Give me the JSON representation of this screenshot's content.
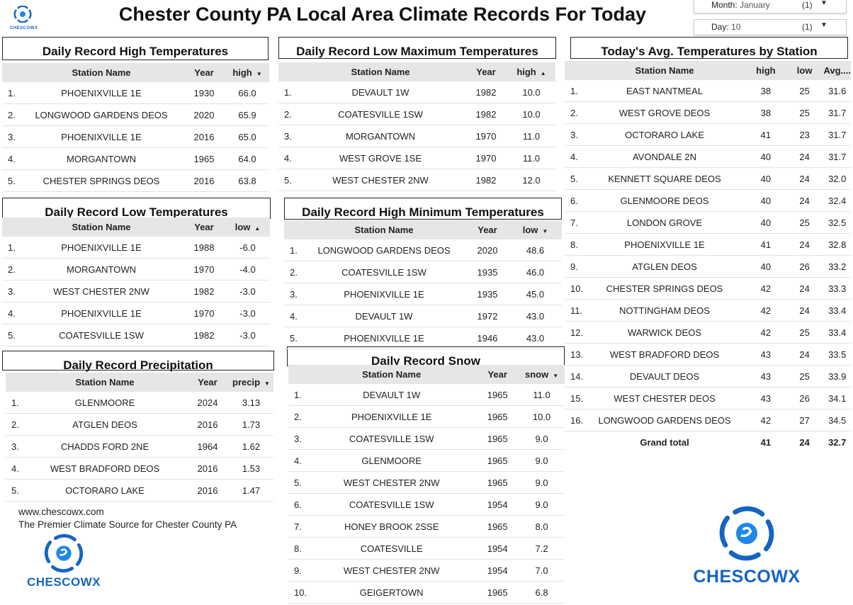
{
  "page": {
    "title": "Chester County PA Local Area Climate Records For Today",
    "small_logo_text": "CHESCOWX"
  },
  "filters": {
    "month": {
      "label": "Month:",
      "value": "January",
      "count": "(1)"
    },
    "day": {
      "label": "Day:",
      "value": "10",
      "count": "(1)"
    }
  },
  "colors": {
    "brand_blue": "#1565c0",
    "header_gray": "#e6e6e6"
  },
  "high_temps": {
    "heading": "Daily Record High Temperatures",
    "columns": [
      "Station Name",
      "Year",
      "high"
    ],
    "sort_icon": "sort-desc-icon",
    "rows": [
      {
        "n": "1.",
        "station": "PHOENIXVILLE 1E",
        "year": "1930",
        "val": "66.0"
      },
      {
        "n": "2.",
        "station": "LONGWOOD GARDENS DEOS",
        "year": "2020",
        "val": "65.9"
      },
      {
        "n": "3.",
        "station": "PHOENIXVILLE 1E",
        "year": "2016",
        "val": "65.0"
      },
      {
        "n": "4.",
        "station": "MORGANTOWN",
        "year": "1965",
        "val": "64.0"
      },
      {
        "n": "5.",
        "station": "CHESTER SPRINGS DEOS",
        "year": "2016",
        "val": "63.8"
      }
    ]
  },
  "low_max_temps": {
    "heading": "Daily Record Low Maximum Temperatures",
    "columns": [
      "Station Name",
      "Year",
      "high"
    ],
    "sort_icon": "sort-asc-icon",
    "rows": [
      {
        "n": "1.",
        "station": "DEVAULT 1W",
        "year": "1982",
        "val": "10.0"
      },
      {
        "n": "2.",
        "station": "COATESVILLE 1SW",
        "year": "1982",
        "val": "10.0"
      },
      {
        "n": "3.",
        "station": "MORGANTOWN",
        "year": "1970",
        "val": "11.0"
      },
      {
        "n": "4.",
        "station": "WEST GROVE 1SE",
        "year": "1970",
        "val": "11.0"
      },
      {
        "n": "5.",
        "station": "WEST CHESTER 2NW",
        "year": "1982",
        "val": "12.0"
      }
    ]
  },
  "low_temps": {
    "heading": "Daily Record Low Temperatures",
    "columns": [
      "Station Name",
      "Year",
      "low"
    ],
    "sort_icon": "sort-asc-icon",
    "rows": [
      {
        "n": "1.",
        "station": "PHOENIXVILLE 1E",
        "year": "1988",
        "val": "-6.0"
      },
      {
        "n": "2.",
        "station": "MORGANTOWN",
        "year": "1970",
        "val": "-4.0"
      },
      {
        "n": "3.",
        "station": "WEST CHESTER 2NW",
        "year": "1982",
        "val": "-3.0"
      },
      {
        "n": "4.",
        "station": "PHOENIXVILLE 1E",
        "year": "1970",
        "val": "-3.0"
      },
      {
        "n": "5.",
        "station": "COATESVILLE 1SW",
        "year": "1982",
        "val": "-3.0"
      }
    ]
  },
  "high_min_temps": {
    "heading": "Daily Record High Minimum Temperatures",
    "columns": [
      "Station Name",
      "Year",
      "low"
    ],
    "sort_icon": "sort-desc-icon",
    "rows": [
      {
        "n": "1.",
        "station": "LONGWOOD GARDENS DEOS",
        "year": "2020",
        "val": "48.6"
      },
      {
        "n": "2.",
        "station": "COATESVILLE 1SW",
        "year": "1935",
        "val": "46.0"
      },
      {
        "n": "3.",
        "station": "PHOENIXVILLE 1E",
        "year": "1935",
        "val": "45.0"
      },
      {
        "n": "4.",
        "station": "DEVAULT 1W",
        "year": "1972",
        "val": "43.0"
      },
      {
        "n": "5.",
        "station": "PHOENIXVILLE 1E",
        "year": "1946",
        "val": "43.0"
      }
    ]
  },
  "precip": {
    "heading": "Daily Record Precipitation",
    "columns": [
      "Station Name",
      "Year",
      "precip"
    ],
    "sort_icon": "sort-desc-icon",
    "rows": [
      {
        "n": "1.",
        "station": "GLENMOORE",
        "year": "2024",
        "val": "3.13"
      },
      {
        "n": "2.",
        "station": "ATGLEN DEOS",
        "year": "2016",
        "val": "1.73"
      },
      {
        "n": "3.",
        "station": "CHADDS FORD 2NE",
        "year": "1964",
        "val": "1.62"
      },
      {
        "n": "4.",
        "station": "WEST BRADFORD DEOS",
        "year": "2016",
        "val": "1.53"
      },
      {
        "n": "5.",
        "station": "OCTORARO LAKE",
        "year": "2016",
        "val": "1.47"
      }
    ]
  },
  "snow": {
    "heading": "Daily Record Snow",
    "columns": [
      "Station Name",
      "Year",
      "snow"
    ],
    "sort_icon": "sort-desc-icon",
    "rows": [
      {
        "n": "1.",
        "station": "DEVAULT 1W",
        "year": "1965",
        "val": "11.0"
      },
      {
        "n": "2.",
        "station": "PHOENIXVILLE 1E",
        "year": "1965",
        "val": "10.0"
      },
      {
        "n": "3.",
        "station": "COATESVILLE 1SW",
        "year": "1965",
        "val": "9.0"
      },
      {
        "n": "4.",
        "station": "GLENMOORE",
        "year": "1965",
        "val": "9.0"
      },
      {
        "n": "5.",
        "station": "WEST CHESTER 2NW",
        "year": "1965",
        "val": "9.0"
      },
      {
        "n": "6.",
        "station": "COATESVILLE 1SW",
        "year": "1954",
        "val": "9.0"
      },
      {
        "n": "7.",
        "station": "HONEY BROOK 2SSE",
        "year": "1965",
        "val": "8.0"
      },
      {
        "n": "8.",
        "station": "COATESVILLE",
        "year": "1954",
        "val": "7.2"
      },
      {
        "n": "9.",
        "station": "WEST CHESTER 2NW",
        "year": "1954",
        "val": "7.0"
      },
      {
        "n": "10.",
        "station": "GEIGERTOWN",
        "year": "1965",
        "val": "6.8"
      }
    ]
  },
  "avg_temps": {
    "heading": "Today's Avg. Temperatures by Station",
    "columns": [
      "Station Name",
      "high",
      "low",
      "Avg...."
    ],
    "rows": [
      {
        "n": "1.",
        "station": "EAST NANTMEAL",
        "high": "38",
        "low": "25",
        "avg": "31.6"
      },
      {
        "n": "2.",
        "station": "WEST GROVE DEOS",
        "high": "38",
        "low": "25",
        "avg": "31.7"
      },
      {
        "n": "3.",
        "station": "OCTORARO LAKE",
        "high": "41",
        "low": "23",
        "avg": "31.7"
      },
      {
        "n": "4.",
        "station": "AVONDALE 2N",
        "high": "40",
        "low": "24",
        "avg": "31.7"
      },
      {
        "n": "5.",
        "station": "KENNETT SQUARE DEOS",
        "high": "40",
        "low": "24",
        "avg": "32.0"
      },
      {
        "n": "6.",
        "station": "GLENMOORE DEOS",
        "high": "40",
        "low": "24",
        "avg": "32.4"
      },
      {
        "n": "7.",
        "station": "LONDON GROVE",
        "high": "40",
        "low": "25",
        "avg": "32.5"
      },
      {
        "n": "8.",
        "station": "PHOENIXVILLE 1E",
        "high": "41",
        "low": "24",
        "avg": "32.8"
      },
      {
        "n": "9.",
        "station": "ATGLEN DEOS",
        "high": "40",
        "low": "26",
        "avg": "33.2"
      },
      {
        "n": "10.",
        "station": "CHESTER SPRINGS DEOS",
        "high": "42",
        "low": "24",
        "avg": "33.3"
      },
      {
        "n": "11.",
        "station": "NOTTINGHAM DEOS",
        "high": "42",
        "low": "24",
        "avg": "33.4"
      },
      {
        "n": "12.",
        "station": "WARWICK DEOS",
        "high": "42",
        "low": "25",
        "avg": "33.4"
      },
      {
        "n": "13.",
        "station": "WEST BRADFORD DEOS",
        "high": "43",
        "low": "24",
        "avg": "33.5"
      },
      {
        "n": "14.",
        "station": "DEVAULT DEOS",
        "high": "43",
        "low": "25",
        "avg": "33.9"
      },
      {
        "n": "15.",
        "station": "WEST CHESTER DEOS",
        "high": "43",
        "low": "26",
        "avg": "34.1"
      },
      {
        "n": "16.",
        "station": "LONGWOOD GARDENS DEOS",
        "high": "42",
        "low": "27",
        "avg": "34.5"
      }
    ],
    "total": {
      "label": "Grand total",
      "high": "41",
      "low": "24",
      "avg": "32.7"
    }
  },
  "footer": {
    "url": "www.chescowx.com",
    "tagline": "The Premier Climate Source for Chester County PA"
  },
  "logos": {
    "left_text": "CHESCOWX",
    "right_text": "CHESCOWX",
    "icon": "cyclone-icon"
  }
}
